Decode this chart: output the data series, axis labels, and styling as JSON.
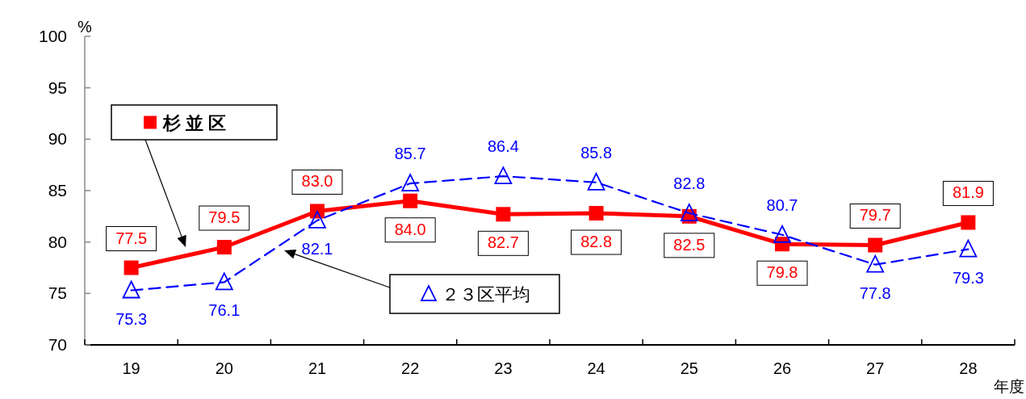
{
  "chart_data": {
    "type": "line",
    "ylabel": "%",
    "xlabel": "年度",
    "categories": [
      "19",
      "20",
      "21",
      "22",
      "23",
      "24",
      "25",
      "26",
      "27",
      "28"
    ],
    "ylim": [
      70,
      100
    ],
    "yticks": [
      70,
      75,
      80,
      85,
      90,
      95,
      100
    ],
    "grid": false,
    "legend": "left",
    "series": [
      {
        "name": "杉 並 区",
        "color": "#ff0000",
        "marker": "square",
        "line_style": "solid",
        "values": [
          77.5,
          79.5,
          83.0,
          84.0,
          82.7,
          82.8,
          82.5,
          79.8,
          79.7,
          81.9
        ],
        "value_labels": [
          "77.5",
          "79.5",
          "83.0",
          "84.0",
          "82.7",
          "82.8",
          "82.5",
          "79.8",
          "79.7",
          "81.9"
        ]
      },
      {
        "name": "２３区平均",
        "color": "#0000ff",
        "marker": "triangle",
        "line_style": "dashed",
        "values": [
          75.3,
          76.1,
          82.1,
          85.7,
          86.4,
          85.8,
          82.8,
          80.7,
          77.8,
          79.3
        ],
        "value_labels": [
          "75.3",
          "76.1",
          "82.1",
          "85.7",
          "86.4",
          "85.8",
          "82.8",
          "80.7",
          "77.8",
          "79.3"
        ]
      }
    ]
  }
}
